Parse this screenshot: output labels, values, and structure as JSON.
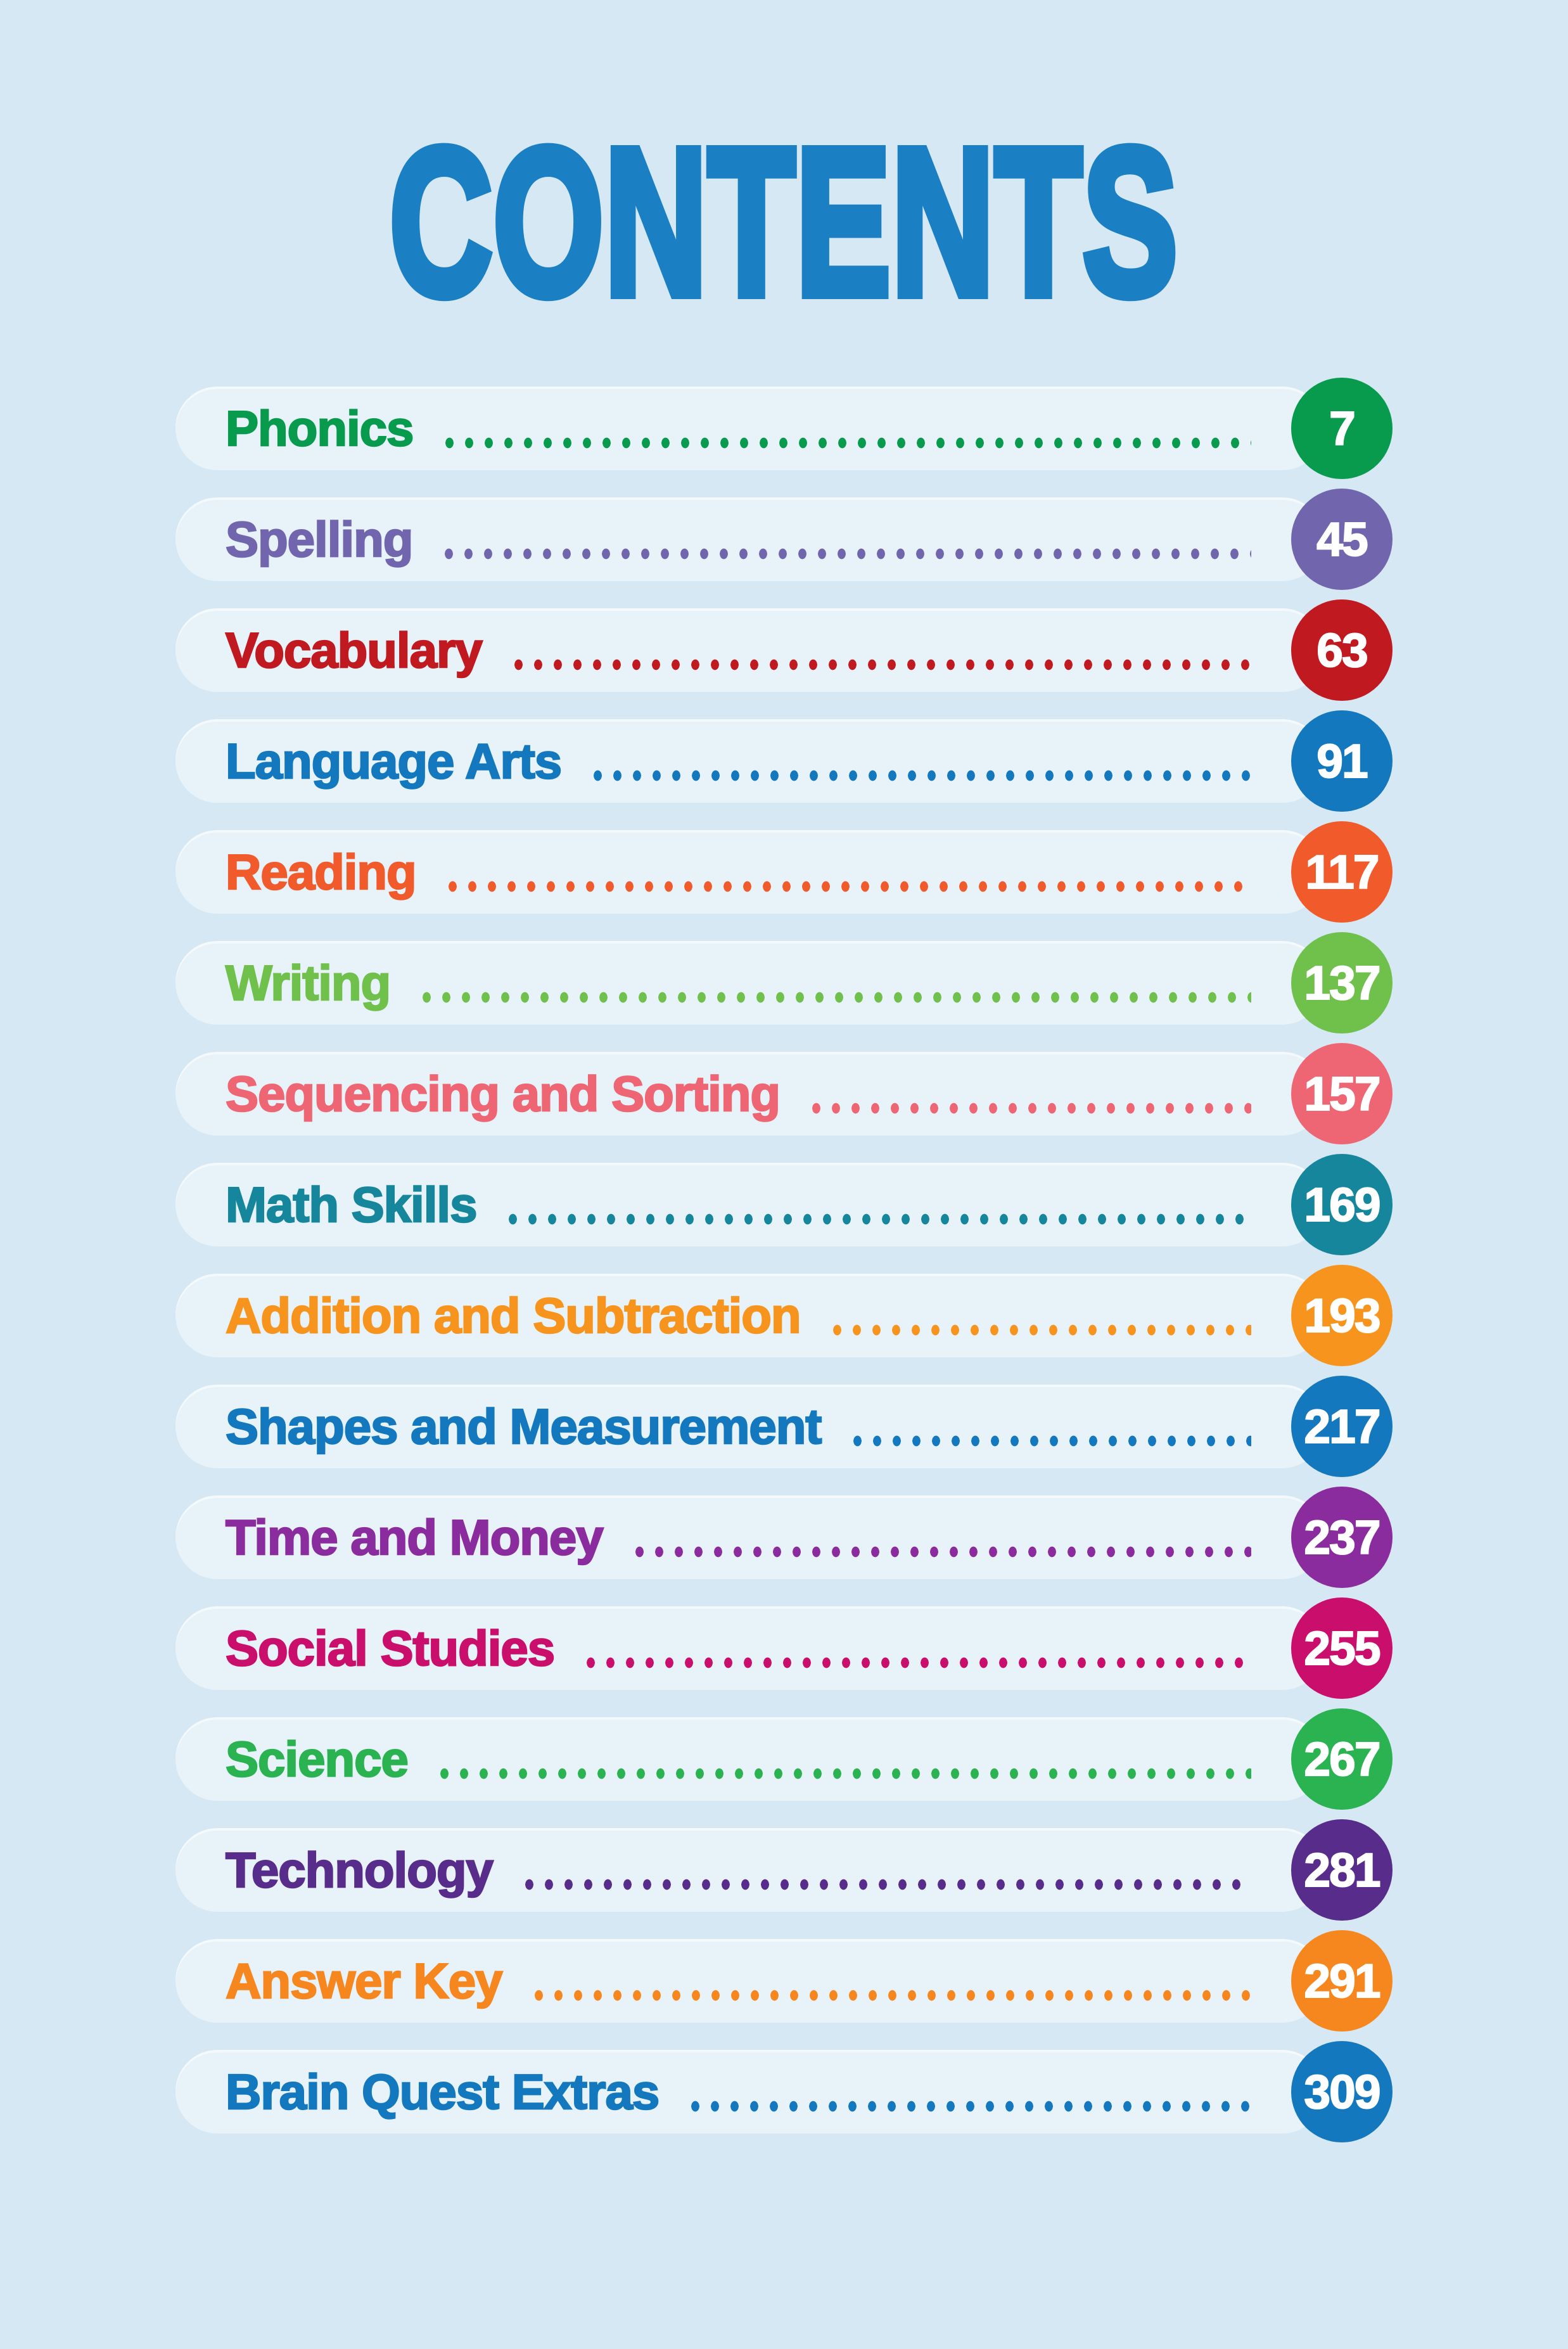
{
  "page": {
    "title": "CONTENTS",
    "title_color": "#1a80c3",
    "background_color": "#d5e8f3",
    "pill_color": "#e8f2f9",
    "number_text_color": "#ffffff"
  },
  "toc": {
    "rows": [
      {
        "label": "Phonics",
        "page": "7",
        "color": "#089a4d"
      },
      {
        "label": "Spelling",
        "page": "45",
        "color": "#7166ae"
      },
      {
        "label": "Vocabulary",
        "page": "63",
        "color": "#c01a20"
      },
      {
        "label": "Language Arts",
        "page": "91",
        "color": "#1378bd"
      },
      {
        "label": "Reading",
        "page": "117",
        "color": "#f15b2b"
      },
      {
        "label": "Writing",
        "page": "137",
        "color": "#6fc14b"
      },
      {
        "label": "Sequencing and Sorting",
        "page": "157",
        "color": "#ee6673"
      },
      {
        "label": "Math Skills",
        "page": "169",
        "color": "#15869c"
      },
      {
        "label": "Addition and Subtraction",
        "page": "193",
        "color": "#f7941e"
      },
      {
        "label": "Shapes and Measurement",
        "page": "217",
        "color": "#1378bd"
      },
      {
        "label": "Time and Money",
        "page": "237",
        "color": "#8a2c9e"
      },
      {
        "label": "Social Studies",
        "page": "255",
        "color": "#ca0e6b"
      },
      {
        "label": "Science",
        "page": "267",
        "color": "#2bb251"
      },
      {
        "label": "Technology",
        "page": "281",
        "color": "#582c8a"
      },
      {
        "label": "Answer Key",
        "page": "291",
        "color": "#f6871f"
      },
      {
        "label": "Brain Quest Extras",
        "page": "309",
        "color": "#1378bd"
      }
    ]
  }
}
